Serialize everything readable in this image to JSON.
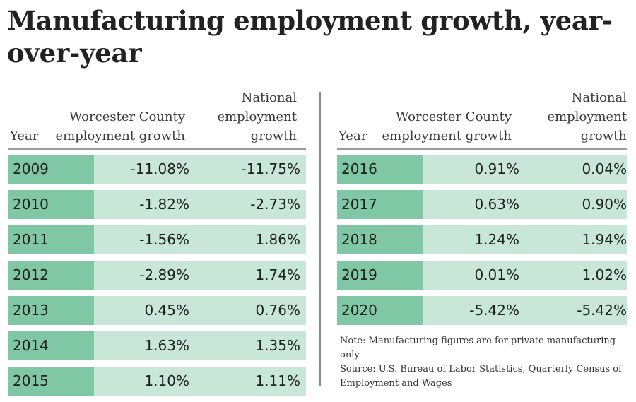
{
  "title": "Manufacturing employment growth, year-over-year",
  "colors": {
    "year_cell": "#7fc7a5",
    "value_cell": "#c9e7d8",
    "divider": "#8a8a8a"
  },
  "columns": {
    "year": "Year",
    "worcester": "Worcester County employment growth",
    "national": "National employment growth"
  },
  "left_table": {
    "rows": [
      {
        "year": "2009",
        "worcester": "-11.08%",
        "national": "-11.75%"
      },
      {
        "year": "2010",
        "worcester": "-1.82%",
        "national": "-2.73%"
      },
      {
        "year": "2011",
        "worcester": "-1.56%",
        "national": "1.86%"
      },
      {
        "year": "2012",
        "worcester": "-2.89%",
        "national": "1.74%"
      },
      {
        "year": "2013",
        "worcester": "0.45%",
        "national": "0.76%"
      },
      {
        "year": "2014",
        "worcester": "1.63%",
        "national": "1.35%"
      },
      {
        "year": "2015",
        "worcester": "1.10%",
        "national": "1.11%"
      }
    ]
  },
  "right_table": {
    "rows": [
      {
        "year": "2016",
        "worcester": "0.91%",
        "national": "0.04%"
      },
      {
        "year": "2017",
        "worcester": "0.63%",
        "national": "0.90%"
      },
      {
        "year": "2018",
        "worcester": "1.24%",
        "national": "1.94%"
      },
      {
        "year": "2019",
        "worcester": "0.01%",
        "national": "1.02%"
      },
      {
        "year": "2020",
        "worcester": "-5.42%",
        "national": "-5.42%"
      }
    ]
  },
  "notes": {
    "note": "Note: Manufacturing figures are for private manufacturing only",
    "source": "Source: U.S. Bureau of Labor Statistics, Quarterly Census of Employment and Wages"
  }
}
